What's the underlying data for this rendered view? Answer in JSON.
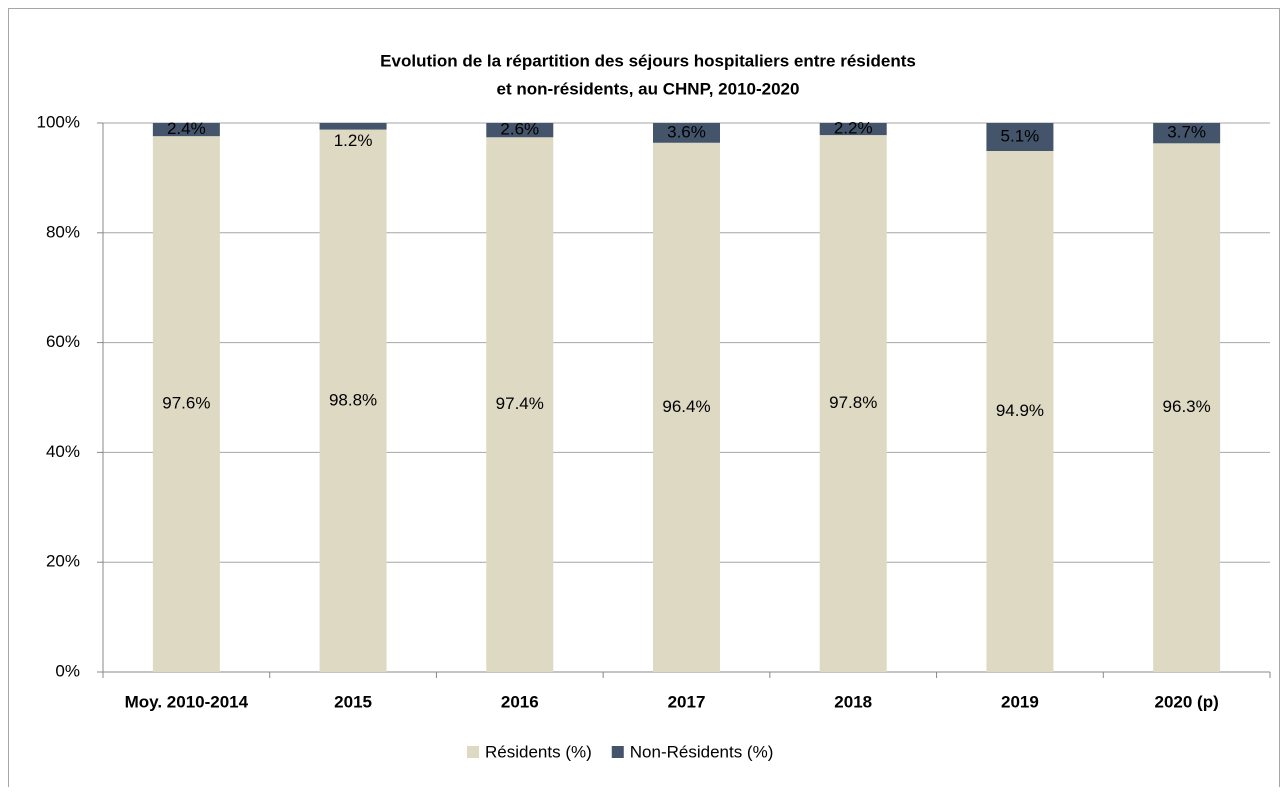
{
  "chart_data": {
    "type": "stacked_bar",
    "title": [
      "Evolution de la répartition des séjours hospitaliers entre résidents",
      "et non-résidents, au CHNP, 2010-2020"
    ],
    "categories": [
      "Moy. 2010-2014",
      "2015",
      "2016",
      "2017",
      "2018",
      "2019",
      "2020 (p)"
    ],
    "series": [
      {
        "name": "Résidents (%)",
        "color": "#ddd9c3",
        "values": [
          97.6,
          98.8,
          97.4,
          96.4,
          97.8,
          94.9,
          96.3
        ],
        "value_labels": [
          "97.6%",
          "98.8%",
          "97.4%",
          "96.4%",
          "97.8%",
          "94.9%",
          "96.3%"
        ]
      },
      {
        "name": "Non-Résidents (%)",
        "color": "#44546a",
        "values": [
          2.4,
          1.2,
          2.6,
          3.6,
          2.2,
          5.1,
          3.7
        ],
        "value_labels": [
          "2.4%",
          "1.2%",
          "2.6%",
          "3.6%",
          "2.2%",
          "5.1%",
          "3.7%"
        ]
      }
    ],
    "ylim": [
      0,
      100
    ],
    "yticks": [
      {
        "value": 0,
        "label": "0%"
      },
      {
        "value": 20,
        "label": "20%"
      },
      {
        "value": 40,
        "label": "40%"
      },
      {
        "value": 60,
        "label": "60%"
      },
      {
        "value": 80,
        "label": "80%"
      },
      {
        "value": 100,
        "label": "100%"
      }
    ],
    "grid": true,
    "legend": "bottom"
  }
}
